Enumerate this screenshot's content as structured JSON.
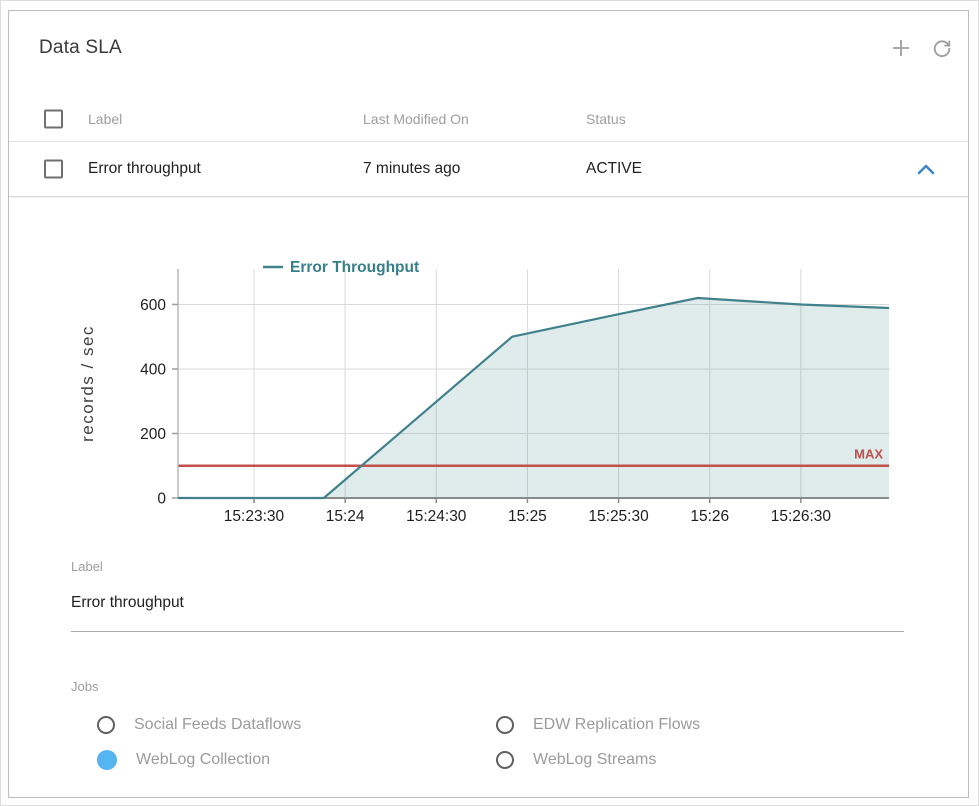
{
  "header": {
    "title": "Data SLA",
    "icons": [
      {
        "name": "add-icon",
        "glyph": "+"
      },
      {
        "name": "refresh-icon"
      }
    ]
  },
  "table": {
    "columns": {
      "label": "Label",
      "last_modified": "Last Modified On",
      "status": "Status"
    },
    "rows": [
      {
        "label": "Error throughput",
        "last_modified": "7 minutes ago",
        "status": "ACTIVE",
        "expanded": true,
        "checked": false
      }
    ]
  },
  "chart_data": {
    "type": "area",
    "title": "",
    "legend": "Error Throughput",
    "legend_position": "top",
    "grid": true,
    "xlabel": "",
    "ylabel": "records / sec",
    "ylim": [
      0,
      710
    ],
    "yticks": [
      0,
      200,
      400,
      600
    ],
    "x_start": "15:23:05",
    "x_end": "15:26:59",
    "xticks": [
      "15:23:30",
      "15:24",
      "15:24:30",
      "15:25",
      "15:25:30",
      "15:26",
      "15:26:30"
    ],
    "series": [
      {
        "name": "Error Throughput",
        "color": "#40818b",
        "fill": "rgba(64,129,139,0.16)",
        "points": [
          [
            "15:23:05",
            0
          ],
          [
            "15:23:53",
            0
          ],
          [
            "15:24:55",
            500
          ],
          [
            "15:25:30",
            570
          ],
          [
            "15:25:56",
            620
          ],
          [
            "15:26:30",
            600
          ],
          [
            "15:26:59",
            589
          ]
        ]
      }
    ],
    "threshold": {
      "value": 100,
      "label": "MAX",
      "color": "#c5504b",
      "label_color": "#c0504d"
    }
  },
  "form": {
    "label_field": {
      "label": "Label",
      "value": "Error throughput"
    },
    "jobs": {
      "label": "Jobs",
      "options": [
        {
          "label": "Social Feeds Dataflows",
          "selected": false
        },
        {
          "label": "WebLog Collection",
          "selected": true
        },
        {
          "label": "EDW Replication Flows",
          "selected": false
        },
        {
          "label": "WebLog Streams",
          "selected": false
        }
      ]
    }
  },
  "colors": {
    "accent_teal": "#40818b",
    "threshold_red": "#c5504b",
    "selected_radio_blue": "#55b4f2",
    "expand_chevron_blue": "#4285c8",
    "icon_gray": "#9e9e9e"
  }
}
